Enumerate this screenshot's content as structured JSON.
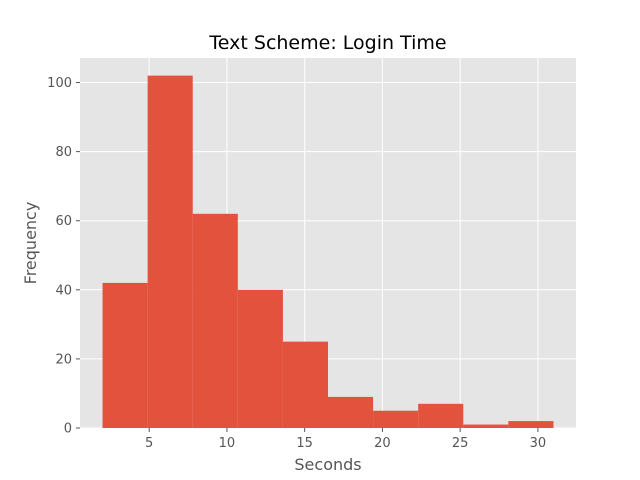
{
  "chart_data": {
    "type": "bar",
    "subtype": "histogram",
    "title": "Text Scheme: Login Time",
    "xlabel": "Seconds",
    "ylabel": "Frequency",
    "xlim": [
      0.55,
      32.45
    ],
    "ylim": [
      0,
      107.1
    ],
    "xticks": [
      5,
      10,
      15,
      20,
      25,
      30
    ],
    "yticks": [
      0,
      20,
      40,
      60,
      80,
      100
    ],
    "bin_edges": [
      2.0,
      4.9,
      7.8,
      10.7,
      13.6,
      16.5,
      19.4,
      22.3,
      25.2,
      28.1,
      31.0
    ],
    "values": [
      42,
      102,
      62,
      40,
      25,
      9,
      5,
      7,
      1,
      2
    ],
    "bar_color": "#E24A33",
    "plot_background": "#E5E5E5",
    "grid": true,
    "legend": "none"
  }
}
